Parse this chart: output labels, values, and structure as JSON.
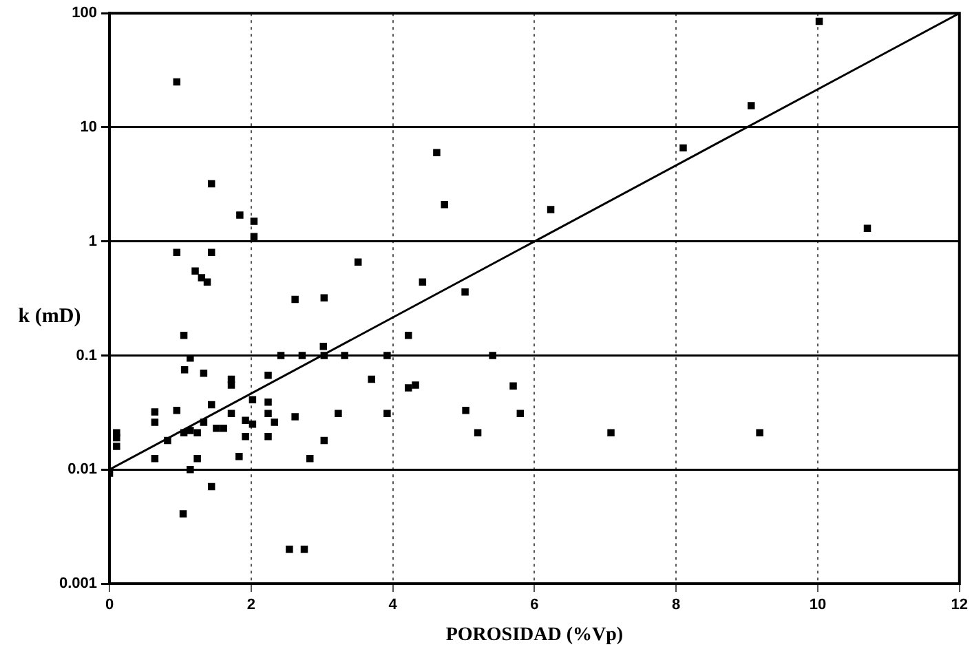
{
  "chart_data": {
    "type": "scatter",
    "xlabel": "POROSIDAD (%Vp)",
    "ylabel": "k (mD)",
    "log": "y",
    "grid": true,
    "legend": false,
    "xlim": [
      0,
      12
    ],
    "xticks": [
      0,
      2,
      4,
      6,
      8,
      10,
      12
    ],
    "ylim": [
      0.001,
      100
    ],
    "yticks": [
      0.001,
      0.01,
      0.1,
      1,
      10,
      100
    ],
    "series": [
      {
        "color": "#000000",
        "marker": "square",
        "x": [
          0.95,
          1.44,
          1.84,
          2.04,
          2.04,
          4.62,
          4.73,
          0.95,
          1.44,
          1.21,
          1.3,
          1.38,
          3.51,
          4.42,
          5.02,
          2.62,
          3.03,
          10.02,
          9.06,
          8.1,
          6.23,
          10.7,
          1.05,
          4.22,
          3.02,
          1.14,
          2.42,
          2.72,
          3.03,
          3.32,
          3.92,
          5.41,
          1.06,
          1.33,
          1.72,
          1.72,
          2.24,
          3.7,
          4.22,
          4.32,
          5.7,
          2.02,
          1.44,
          2.24,
          0.64,
          0.95,
          1.72,
          2.24,
          2.62,
          3.23,
          3.92,
          5.03,
          5.8,
          0.64,
          1.33,
          1.92,
          2.02,
          2.33,
          1.51,
          1.61,
          0.1,
          0.1,
          0.1,
          0.82,
          1.05,
          1.14,
          1.24,
          1.92,
          2.24,
          3.03,
          5.2,
          7.08,
          9.18,
          0.64,
          1.24,
          1.83,
          2.83,
          1.14,
          0,
          1.44,
          1.04,
          2.54,
          2.75
        ],
        "values": [
          25,
          3.2,
          1.7,
          1.5,
          1.1,
          6,
          2.1,
          0.8,
          0.8,
          0.55,
          0.48,
          0.44,
          0.66,
          0.44,
          0.36,
          0.31,
          0.32,
          85,
          15.5,
          6.6,
          1.9,
          1.3,
          0.15,
          0.15,
          0.12,
          0.095,
          0.1,
          0.1,
          0.1,
          0.1,
          0.1,
          0.1,
          0.075,
          0.07,
          0.062,
          0.055,
          0.067,
          0.062,
          0.052,
          0.055,
          0.054,
          0.041,
          0.037,
          0.039,
          0.032,
          0.033,
          0.031,
          0.031,
          0.029,
          0.031,
          0.031,
          0.033,
          0.031,
          0.026,
          0.026,
          0.027,
          0.025,
          0.026,
          0.023,
          0.023,
          0.021,
          0.019,
          0.016,
          0.018,
          0.021,
          0.022,
          0.021,
          0.0195,
          0.0195,
          0.018,
          0.021,
          0.021,
          0.021,
          0.0125,
          0.0125,
          0.013,
          0.0125,
          0.01,
          0.0093,
          0.0071,
          0.0041,
          0.002,
          0.002
        ]
      },
      {
        "type": "line",
        "marker": "none",
        "color": "#000000",
        "x": [
          0,
          12
        ],
        "values": [
          0.01,
          100
        ]
      }
    ]
  }
}
